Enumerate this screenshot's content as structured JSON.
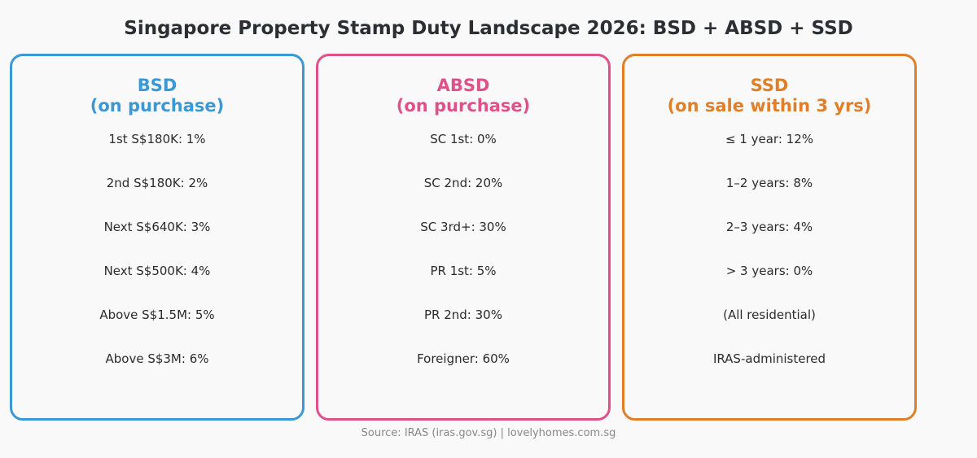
{
  "title": "Singapore Property Stamp Duty Landscape 2026: BSD + ABSD + SSD",
  "cards": [
    {
      "heading": "BSD",
      "subheading": "(on purchase)",
      "color": "#3a98d4",
      "items": [
        "1st S$180K: 1%",
        "2nd S$180K: 2%",
        "Next S$640K: 3%",
        "Next S$500K: 4%",
        "Above S$1.5M: 5%",
        "Above S$3M: 6%"
      ]
    },
    {
      "heading": "ABSD",
      "subheading": "(on purchase)",
      "color": "#e0508a",
      "items": [
        "SC 1st: 0%",
        "SC 2nd: 20%",
        "SC 3rd+: 30%",
        "PR 1st: 5%",
        "PR 2nd: 30%",
        "Foreigner: 60%"
      ]
    },
    {
      "heading": "SSD",
      "subheading": "(on sale within 3 yrs)",
      "color": "#e07f2a",
      "items": [
        "≤ 1 year: 12%",
        "1–2 years: 8%",
        "2–3 years: 4%",
        "> 3 years: 0%",
        "(All residential)",
        "IRAS-administered"
      ]
    }
  ],
  "source": "Source: IRAS (iras.gov.sg) | lovelyhomes.com.sg"
}
